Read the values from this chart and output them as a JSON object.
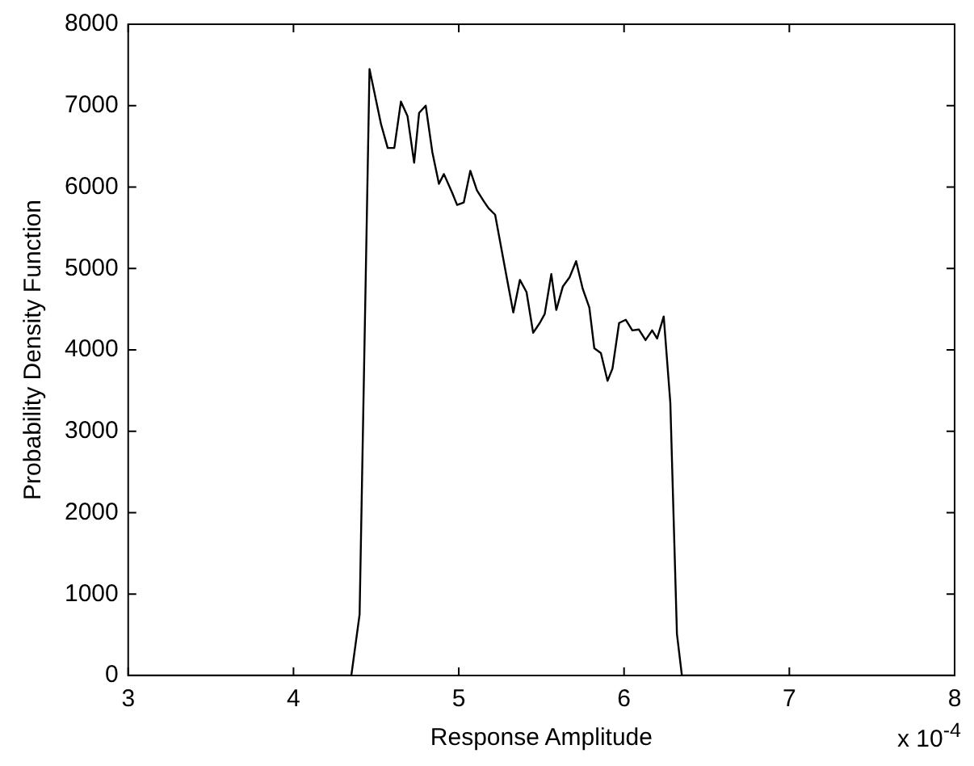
{
  "chart_data": {
    "type": "line",
    "xlabel": "Response Amplitude",
    "ylabel": "Probability Density Function",
    "annotations": [
      "x 10$^{-4}$"
    ],
    "x": [
      3,
      4.35,
      4.4,
      4.46,
      4.53,
      4.57,
      4.61,
      4.65,
      4.69,
      4.73,
      4.76,
      4.8,
      4.84,
      4.88,
      4.91,
      4.96,
      4.99,
      5.03,
      5.07,
      5.11,
      5.15,
      5.18,
      5.22,
      5.25,
      5.29,
      5.33,
      5.37,
      5.41,
      5.45,
      5.49,
      5.52,
      5.56,
      5.59,
      5.63,
      5.67,
      5.71,
      5.75,
      5.79,
      5.82,
      5.86,
      5.9,
      5.93,
      5.97,
      6.01,
      6.05,
      6.09,
      6.13,
      6.17,
      6.2,
      6.24,
      6.28,
      6.32,
      6.35,
      8
    ],
    "series": [
      {
        "color": "#000000",
        "values": [
          0,
          0,
          750,
          7450,
          6770,
          6480,
          6480,
          7050,
          6870,
          6300,
          6910,
          7000,
          6430,
          6040,
          6160,
          5930,
          5780,
          5810,
          6200,
          5960,
          5830,
          5740,
          5660,
          5330,
          4890,
          4460,
          4860,
          4710,
          4210,
          4330,
          4440,
          4930,
          4490,
          4780,
          4890,
          5090,
          4750,
          4520,
          4020,
          3960,
          3620,
          3770,
          4330,
          4370,
          4240,
          4250,
          4120,
          4240,
          4140,
          4410,
          3350,
          510,
          0,
          0
        ]
      }
    ],
    "xlim": [
      3,
      8
    ],
    "xticks": [
      3,
      4,
      5,
      6,
      7,
      8
    ],
    "ylim": [
      0,
      8000
    ],
    "yticks": [
      0,
      1000,
      2000,
      3000,
      4000,
      5000,
      6000,
      7000,
      8000
    ],
    "grid": false,
    "legend": false,
    "marker": "none",
    "line_style": "solid"
  }
}
